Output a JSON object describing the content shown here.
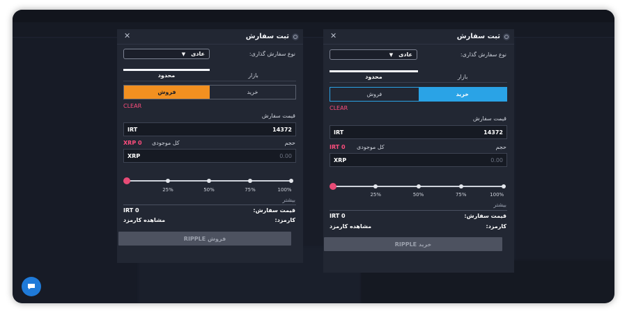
{
  "left_panel": {
    "title": "ثبت سفارش",
    "order_type_label": "نوع سفارش گذاری:",
    "order_type_value": "عادی",
    "tab_market": "بازار",
    "tab_limit": "محدود",
    "side_buy": "خرید",
    "side_sell": "فروش",
    "active_side": "sell",
    "clear": "CLEAR",
    "price_label": "قیمت سفارش",
    "price_unit": "IRT",
    "price_value": "14372",
    "volume_label": "حجم",
    "balance_label": "کل موجودی",
    "balance_value": "XRP 0",
    "volume_unit": "XRP",
    "volume_placeholder": "0.00",
    "slider_percent": 0,
    "ticks": [
      "25%",
      "50%",
      "75%",
      "100%"
    ],
    "more": "بیشتر",
    "order_price_label": "قیمت سفارش:",
    "order_price_value": "IRT 0",
    "fee_label": "کارمزد:",
    "fee_link": "مشاهده کارمزد",
    "submit": "فروش RIPPLE"
  },
  "right_panel": {
    "title": "ثبت سفارش",
    "order_type_label": "نوع سفارش گذاری:",
    "order_type_value": "عادی",
    "tab_market": "بازار",
    "tab_limit": "محدود",
    "side_buy": "خرید",
    "side_sell": "فروش",
    "active_side": "buy",
    "clear": "CLEAR",
    "price_label": "قیمت سفارش",
    "price_unit": "IRT",
    "price_value": "14372",
    "volume_label": "حجم",
    "balance_label": "کل موجودی",
    "balance_value": "IRT 0",
    "volume_unit": "XRP",
    "volume_placeholder": "0.00",
    "slider_percent": 0,
    "ticks": [
      "25%",
      "50%",
      "75%",
      "100%"
    ],
    "more": "بیشتر",
    "order_price_label": "قیمت سفارش:",
    "order_price_value": "IRT 0",
    "fee_label": "کارمزد:",
    "fee_link": "مشاهده کارمزد",
    "submit": "خرید RIPPLE"
  },
  "colors": {
    "sell_accent": "#f29020",
    "buy_accent": "#2aa3e6",
    "clear_red": "#ff4d7d",
    "slider_handle": "#e84b76",
    "panel_bg": "#222733",
    "chat_button": "#1f7ad8"
  },
  "icons": {
    "close": "close-icon",
    "header": "order-icon",
    "dropdown": "chevron-down-icon",
    "chat": "chat-icon"
  }
}
